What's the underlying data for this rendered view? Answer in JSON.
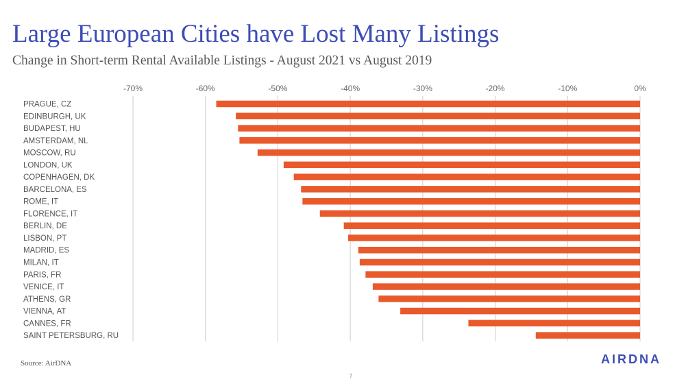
{
  "header": {
    "title": "Large European Cities have Lost Many Listings",
    "subtitle": "Change in Short-term Rental Available Listings - August 2021 vs August 2019"
  },
  "footer": {
    "source": "Source: AirDNA",
    "page_number": "7",
    "logo_text": "AIRDNA"
  },
  "colors": {
    "bar": "#e85a2c",
    "gridline": "#cccccc",
    "title": "#3c4db4"
  },
  "chart_data": {
    "type": "bar",
    "orientation": "horizontal",
    "categories": [
      "PRAGUE, CZ",
      "EDINBURGH, UK",
      "BUDAPEST, HU",
      "AMSTERDAM, NL",
      "MOSCOW, RU",
      "LONDON, UK",
      "COPENHAGEN, DK",
      "BARCELONA, ES",
      "ROME, IT",
      "FLORENCE, IT",
      "BERLIN, DE",
      "LISBON, PT",
      "MADRID, ES",
      "MILAN, IT",
      "PARIS, FR",
      "VENICE, IT",
      "ATHENS, GR",
      "VIENNA, AT",
      "CANNES, FR",
      "SAINT PETERSBURG, RU"
    ],
    "values": [
      -58.5,
      -55.8,
      -55.5,
      -55.3,
      -52.8,
      -49.2,
      -47.8,
      -46.8,
      -46.6,
      -44.2,
      -40.9,
      -40.3,
      -38.9,
      -38.7,
      -37.9,
      -36.9,
      -36.1,
      -33.1,
      -23.7,
      -14.4
    ],
    "xlim": [
      -70,
      0
    ],
    "xticks": [
      -70,
      -60,
      -50,
      -40,
      -30,
      -20,
      -10,
      0
    ],
    "tick_labels": [
      "-70%",
      "-60%",
      "-50%",
      "-40%",
      "-30%",
      "-20%",
      "-10%",
      "0%"
    ],
    "axis_position": "top",
    "grid": true,
    "legend": "none"
  }
}
